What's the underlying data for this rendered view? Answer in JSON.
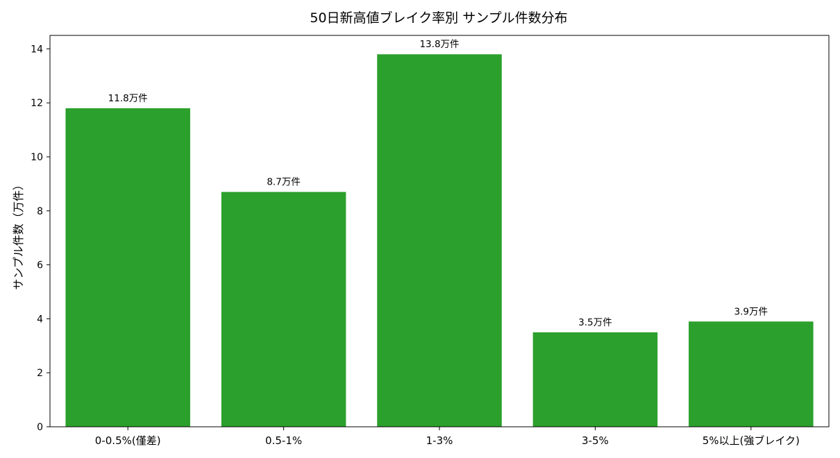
{
  "chart_data": {
    "type": "bar",
    "title": "50日新高値ブレイク率別 サンプル件数分布",
    "xlabel": "",
    "ylabel": "サンプル件数（万件）",
    "categories": [
      "0-0.5%(僅差)",
      "0.5-1%",
      "1-3%",
      "3-5%",
      "5%以上(強ブレイク)"
    ],
    "values": [
      11.8,
      8.7,
      13.8,
      3.5,
      3.9
    ],
    "data_labels": [
      "11.8万件",
      "8.7万件",
      "13.8万件",
      "3.5万件",
      "3.9万件"
    ],
    "ylim": [
      0,
      14.5
    ],
    "yticks": [
      0,
      2,
      4,
      6,
      8,
      10,
      12,
      14
    ],
    "grid": false,
    "bar_color": "#2ca02c"
  }
}
